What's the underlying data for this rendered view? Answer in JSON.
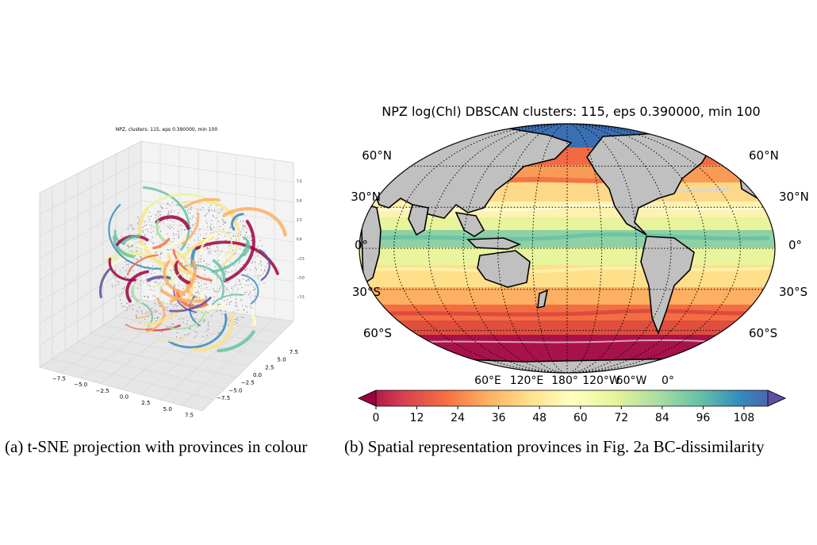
{
  "chart_data": [
    {
      "type": "scatter",
      "title": "NPZ, clusters: 115, eps 0.390000, min 100",
      "projection": "3d",
      "grid": true,
      "x_ticks": [
        "−7.5",
        "−5.0",
        "−2.5",
        "0.0",
        "2.5",
        "5.0",
        "7.5"
      ],
      "y_ticks": [
        "7.5",
        "5.0",
        "2.5",
        "0.0",
        "−2.5",
        "−5.0",
        "−7.5"
      ],
      "z_ticks": [
        "−7.5",
        "−5.0",
        "−2.5",
        "0.0",
        "2.5",
        "5.0",
        "7.5"
      ],
      "colormap": "Spectral",
      "cluster_count": 115
    },
    {
      "type": "heatmap",
      "title": "NPZ log(Chl) DBSCAN clusters: 115, eps 0.390000, min 100",
      "projection": "robinson",
      "grid": true,
      "lat_labels_left": [
        "60°N",
        "30°N",
        "0°",
        "30°S",
        "60°S"
      ],
      "lat_labels_right": [
        "60°N",
        "30°N",
        "0°",
        "30°S",
        "60°S"
      ],
      "lon_labels": [
        "60°E",
        "120°E",
        "180°",
        "120°W",
        "60°W",
        "0°"
      ],
      "colorbar": {
        "ticks": [
          "0",
          "12",
          "24",
          "36",
          "48",
          "60",
          "72",
          "84",
          "96",
          "108"
        ],
        "range": [
          0,
          115
        ],
        "extend": "both",
        "colors": [
          "#9e0142",
          "#d53e4f",
          "#f46d43",
          "#fdae61",
          "#fee08b",
          "#ffffbf",
          "#e6f598",
          "#abdda4",
          "#66c2a5",
          "#3288bd",
          "#5e4fa2"
        ]
      },
      "land_color": "#c0c0c0"
    }
  ],
  "captions": {
    "a": "(a) t-SNE projection with provinces in colour",
    "b": "(b) Spatial representation provinces in Fig. 2a BC-dissimilarity"
  }
}
